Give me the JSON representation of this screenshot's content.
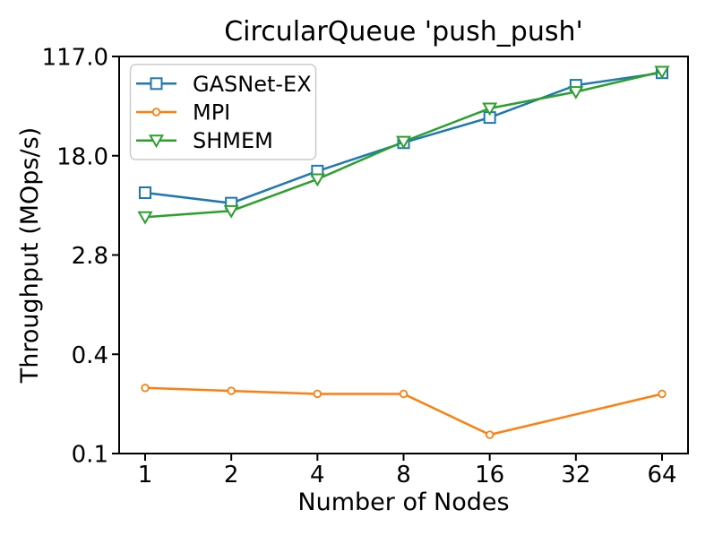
{
  "figure": {
    "title": "CircularQueue 'push_push'",
    "xlabel": "Number of Nodes",
    "ylabel": "Throughput (MOps/s)"
  },
  "chart_data": {
    "type": "line",
    "title": "CircularQueue 'push_push'",
    "xlabel": "Number of Nodes",
    "ylabel": "Throughput (MOps/s)",
    "x_scale": "log2",
    "y_scale": "log-like, custom ticks evenly spaced",
    "x_ticks": [
      1,
      2,
      4,
      8,
      16,
      32,
      64
    ],
    "x_tick_labels": [
      "1",
      "2",
      "4",
      "8",
      "16",
      "32",
      "64"
    ],
    "y_ticks": [
      0.1,
      0.4,
      2.8,
      18.0,
      117.0
    ],
    "y_tick_labels": [
      "0.1",
      "0.4",
      "2.8",
      "18.0",
      "117.0"
    ],
    "ylim": [
      0.1,
      117.0
    ],
    "grid": false,
    "legend_position": "upper left",
    "units": "MOps/s",
    "series": [
      {
        "name": "GASNet-EX",
        "color": "#1f77b4",
        "marker": "square",
        "x": [
          1,
          2,
          4,
          8,
          16,
          32,
          64
        ],
        "values": [
          9.0,
          7.4,
          13.5,
          23.0,
          37.0,
          68.0,
          86.0
        ]
      },
      {
        "name": "MPI",
        "color": "#ff7f0e",
        "marker": "circle",
        "x": [
          1,
          2,
          4,
          8,
          16,
          64
        ],
        "values": [
          0.25,
          0.24,
          0.23,
          0.23,
          0.13,
          0.23
        ]
      },
      {
        "name": "SHMEM",
        "color": "#2ca02c",
        "marker": "triangle-down",
        "x": [
          1,
          2,
          4,
          8,
          16,
          32,
          64
        ],
        "values": [
          5.7,
          6.4,
          11.6,
          23.5,
          44.0,
          60.0,
          88.0
        ]
      }
    ]
  }
}
